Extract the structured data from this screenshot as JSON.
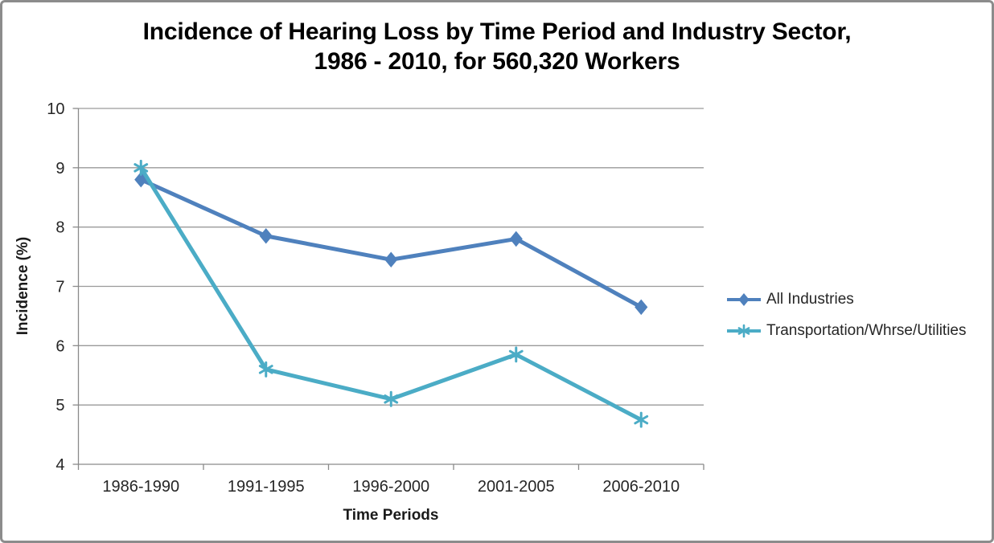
{
  "title": {
    "line1": "Incidence of Hearing Loss by Time Period and Industry Sector,",
    "line2": "1986 - 2010, for 560,320 Workers"
  },
  "chart_data": {
    "type": "line",
    "title": "Incidence of Hearing Loss by Time Period and Industry Sector, 1986 - 2010, for 560,320 Workers",
    "categories": [
      "1986-1990",
      "1991-1995",
      "1996-2000",
      "2001-2005",
      "2006-2010"
    ],
    "series": [
      {
        "name": "All Industries",
        "values": [
          8.8,
          7.85,
          7.45,
          7.8,
          6.65
        ],
        "color": "#4F81BD",
        "marker": "diamond"
      },
      {
        "name": "Transportation/Whrse/Utilities",
        "values": [
          9.0,
          5.6,
          5.1,
          5.85,
          4.75
        ],
        "color": "#4BACC6",
        "marker": "asterisk"
      }
    ],
    "xlabel": "Time Periods",
    "ylabel": "Incidence (%)",
    "ylim": [
      4,
      10
    ],
    "yticks": [
      4,
      5,
      6,
      7,
      8,
      9,
      10
    ],
    "grid": true,
    "legend_position": "right"
  },
  "style_colors": {
    "gridline": "#9A9A9A",
    "axis": "#8A8A8A",
    "tick_text": "#262626",
    "title_text": "#000000",
    "frame_border": "#8C8C8C",
    "background": "#FFFFFF"
  }
}
